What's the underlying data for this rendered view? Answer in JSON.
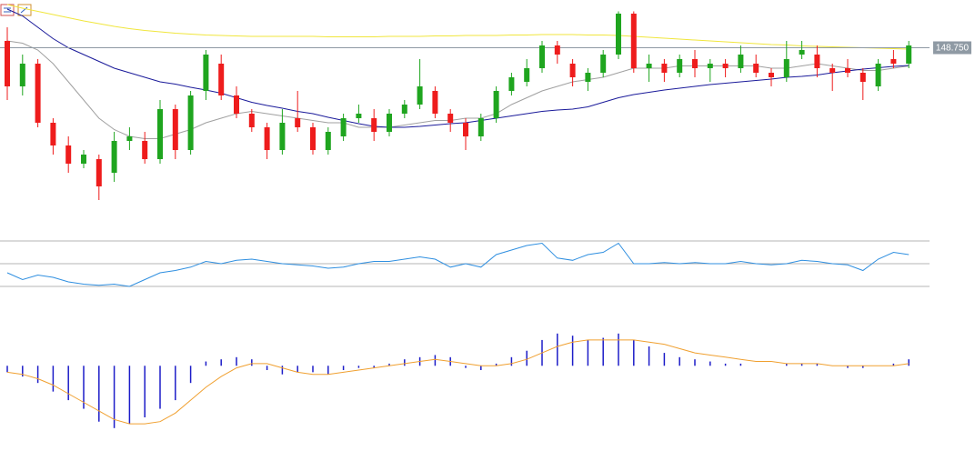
{
  "chart_data": [
    {
      "type": "candlestick",
      "ylim": [
        145.4,
        150.0
      ],
      "up_color": "#1fa51f",
      "down_color": "#ee1c1c",
      "ohlc": [
        [
          148.9,
          149.2,
          147.6,
          147.9
        ],
        [
          147.9,
          148.6,
          147.7,
          148.4
        ],
        [
          148.4,
          148.5,
          147.0,
          147.1
        ],
        [
          147.1,
          147.2,
          146.4,
          146.6
        ],
        [
          146.6,
          146.8,
          146.0,
          146.2
        ],
        [
          146.2,
          146.5,
          146.1,
          146.4
        ],
        [
          146.3,
          146.4,
          145.4,
          145.7
        ],
        [
          146.0,
          146.9,
          145.8,
          146.7
        ],
        [
          146.7,
          147.0,
          146.5,
          146.8
        ],
        [
          146.7,
          146.9,
          146.2,
          146.3
        ],
        [
          146.3,
          147.6,
          146.2,
          147.4
        ],
        [
          147.4,
          147.5,
          146.3,
          146.5
        ],
        [
          146.5,
          147.8,
          146.4,
          147.7
        ],
        [
          147.8,
          148.7,
          147.6,
          148.6
        ],
        [
          148.4,
          148.6,
          147.6,
          147.7
        ],
        [
          147.7,
          147.9,
          147.2,
          147.3
        ],
        [
          147.3,
          147.4,
          146.9,
          147.0
        ],
        [
          147.0,
          147.1,
          146.3,
          146.5
        ],
        [
          146.5,
          147.4,
          146.4,
          147.1
        ],
        [
          147.2,
          147.8,
          146.9,
          147.0
        ],
        [
          147.0,
          147.1,
          146.4,
          146.5
        ],
        [
          146.5,
          147.0,
          146.4,
          146.9
        ],
        [
          146.8,
          147.3,
          146.7,
          147.2
        ],
        [
          147.2,
          147.5,
          147.1,
          147.3
        ],
        [
          147.2,
          147.4,
          146.7,
          146.9
        ],
        [
          146.9,
          147.4,
          146.8,
          147.3
        ],
        [
          147.3,
          147.6,
          147.2,
          147.5
        ],
        [
          147.5,
          148.5,
          147.4,
          147.9
        ],
        [
          147.8,
          147.9,
          147.2,
          147.3
        ],
        [
          147.3,
          147.4,
          146.9,
          147.1
        ],
        [
          147.1,
          147.2,
          146.5,
          146.8
        ],
        [
          146.8,
          147.3,
          146.7,
          147.2
        ],
        [
          147.2,
          147.9,
          147.1,
          147.8
        ],
        [
          147.8,
          148.2,
          147.7,
          148.1
        ],
        [
          148.0,
          148.5,
          147.9,
          148.3
        ],
        [
          148.3,
          148.9,
          148.2,
          148.8
        ],
        [
          148.8,
          148.9,
          148.4,
          148.6
        ],
        [
          148.4,
          148.5,
          147.9,
          148.1
        ],
        [
          148.0,
          148.3,
          147.8,
          148.2
        ],
        [
          148.2,
          148.7,
          148.1,
          148.6
        ],
        [
          148.6,
          149.55,
          148.5,
          149.5
        ],
        [
          149.5,
          149.55,
          148.2,
          148.3
        ],
        [
          148.3,
          148.6,
          148.0,
          148.4
        ],
        [
          148.4,
          148.5,
          148.0,
          148.2
        ],
        [
          148.2,
          148.6,
          148.1,
          148.5
        ],
        [
          148.5,
          148.7,
          148.1,
          148.3
        ],
        [
          148.3,
          148.5,
          148.0,
          148.4
        ],
        [
          148.4,
          148.5,
          148.1,
          148.3
        ],
        [
          148.3,
          148.8,
          148.2,
          148.6
        ],
        [
          148.4,
          148.6,
          148.1,
          148.2
        ],
        [
          148.2,
          148.3,
          147.9,
          148.1
        ],
        [
          148.1,
          148.9,
          148.0,
          148.5
        ],
        [
          148.6,
          148.9,
          148.5,
          148.7
        ],
        [
          148.6,
          148.8,
          148.1,
          148.3
        ],
        [
          148.3,
          148.4,
          147.8,
          148.2
        ],
        [
          148.3,
          148.5,
          148.1,
          148.2
        ],
        [
          148.2,
          148.3,
          147.6,
          148.0
        ],
        [
          147.9,
          148.5,
          147.8,
          148.4
        ],
        [
          148.5,
          148.7,
          148.3,
          148.4
        ],
        [
          148.4,
          148.9,
          148.3,
          148.8
        ]
      ],
      "overlays": [
        {
          "color": "#f0e63c",
          "values": [
            149.7,
            149.62,
            149.55,
            149.48,
            149.41,
            149.34,
            149.28,
            149.22,
            149.17,
            149.13,
            149.1,
            149.07,
            149.05,
            149.03,
            149.02,
            149.01,
            149.0,
            149.0,
            149.0,
            149.0,
            149.0,
            148.99,
            148.99,
            148.99,
            148.99,
            149.0,
            149.0,
            149.0,
            149.01,
            149.01,
            149.02,
            149.02,
            149.02,
            149.03,
            149.03,
            149.04,
            149.04,
            149.04,
            149.03,
            149.03,
            149.02,
            149.0,
            148.98,
            148.96,
            148.94,
            148.92,
            148.9,
            148.88,
            148.86,
            148.84,
            148.82,
            148.81,
            148.79,
            148.78,
            148.77,
            148.76,
            148.75,
            148.74,
            148.73,
            148.72
          ]
        },
        {
          "color": "#a0a0a0",
          "values": [
            148.9,
            148.85,
            148.7,
            148.4,
            148.0,
            147.6,
            147.2,
            146.95,
            146.8,
            146.75,
            146.75,
            146.85,
            146.95,
            147.1,
            147.2,
            147.3,
            147.35,
            147.3,
            147.25,
            147.2,
            147.15,
            147.1,
            147.1,
            147.0,
            147.0,
            147.0,
            147.05,
            147.1,
            147.15,
            147.15,
            147.2,
            147.2,
            147.3,
            147.5,
            147.65,
            147.8,
            147.9,
            148.0,
            148.05,
            148.1,
            148.2,
            148.3,
            148.3,
            148.3,
            148.35,
            148.35,
            148.35,
            148.35,
            148.35,
            148.35,
            148.3,
            148.3,
            148.35,
            148.4,
            148.35,
            148.3,
            148.25,
            148.25,
            148.3,
            148.35
          ]
        },
        {
          "color": "#1a1a9a",
          "values": [
            149.6,
            149.45,
            149.2,
            148.95,
            148.75,
            148.6,
            148.45,
            148.3,
            148.2,
            148.1,
            148.0,
            147.95,
            147.88,
            147.82,
            147.75,
            147.65,
            147.55,
            147.48,
            147.42,
            147.35,
            147.3,
            147.22,
            147.15,
            147.08,
            147.02,
            147.0,
            147.0,
            147.02,
            147.05,
            147.08,
            147.1,
            147.15,
            147.2,
            147.25,
            147.3,
            147.35,
            147.38,
            147.4,
            147.45,
            147.55,
            147.65,
            147.72,
            147.77,
            147.82,
            147.86,
            147.9,
            147.94,
            147.97,
            148.0,
            148.03,
            148.06,
            148.1,
            148.12,
            148.15,
            148.2,
            148.24,
            148.28,
            148.31,
            148.34,
            148.36
          ]
        }
      ],
      "price_line": {
        "value": 148.75,
        "label": "148.750",
        "color": "#8f9aa4"
      }
    },
    {
      "type": "line",
      "ylim": [
        0,
        100
      ],
      "levels": [
        30,
        50,
        70
      ],
      "level_color": "#b4b4b4",
      "color": "#2f8fe0",
      "values": [
        42,
        36,
        40,
        38,
        34,
        32,
        31,
        32,
        30,
        36,
        42,
        44,
        47,
        52,
        50,
        53,
        54,
        52,
        50,
        49,
        48,
        46,
        47,
        50,
        52,
        52,
        54,
        56,
        54,
        47,
        50,
        47,
        58,
        62,
        66,
        68,
        55,
        53,
        58,
        60,
        68,
        50,
        50,
        51,
        50,
        51,
        50,
        50,
        52,
        50,
        49,
        50,
        53,
        52,
        50,
        49,
        44,
        54,
        60,
        58
      ]
    },
    {
      "type": "macd",
      "ylim": [
        -0.35,
        0.2
      ],
      "histogram": {
        "color": "#1c1cc8",
        "values": [
          -0.03,
          -0.05,
          -0.08,
          -0.12,
          -0.16,
          -0.2,
          -0.26,
          -0.29,
          -0.27,
          -0.24,
          -0.2,
          -0.16,
          -0.08,
          0.02,
          0.03,
          0.04,
          0.03,
          -0.02,
          -0.04,
          -0.03,
          -0.03,
          -0.04,
          -0.02,
          -0.01,
          -0.01,
          0.01,
          0.03,
          0.04,
          0.05,
          0.04,
          -0.01,
          -0.02,
          0.01,
          0.04,
          0.07,
          0.12,
          0.15,
          0.14,
          0.12,
          0.13,
          0.15,
          0.12,
          0.09,
          0.06,
          0.04,
          0.03,
          0.02,
          0.01,
          0.01,
          0.0,
          0.0,
          0.01,
          0.01,
          0.01,
          0.0,
          -0.01,
          -0.01,
          0.0,
          0.01,
          0.03
        ]
      },
      "signal": {
        "color": "#f0a030",
        "values": [
          -0.03,
          -0.04,
          -0.06,
          -0.09,
          -0.13,
          -0.17,
          -0.21,
          -0.25,
          -0.27,
          -0.27,
          -0.26,
          -0.22,
          -0.16,
          -0.1,
          -0.05,
          -0.01,
          0.01,
          0.01,
          -0.01,
          -0.03,
          -0.04,
          -0.04,
          -0.03,
          -0.02,
          -0.01,
          0.0,
          0.01,
          0.02,
          0.03,
          0.02,
          0.01,
          0.0,
          0.0,
          0.01,
          0.03,
          0.06,
          0.09,
          0.11,
          0.12,
          0.12,
          0.12,
          0.12,
          0.11,
          0.1,
          0.08,
          0.06,
          0.05,
          0.04,
          0.03,
          0.02,
          0.02,
          0.01,
          0.01,
          0.01,
          0.0,
          0.0,
          0.0,
          0.0,
          0.0,
          0.01
        ]
      }
    }
  ]
}
